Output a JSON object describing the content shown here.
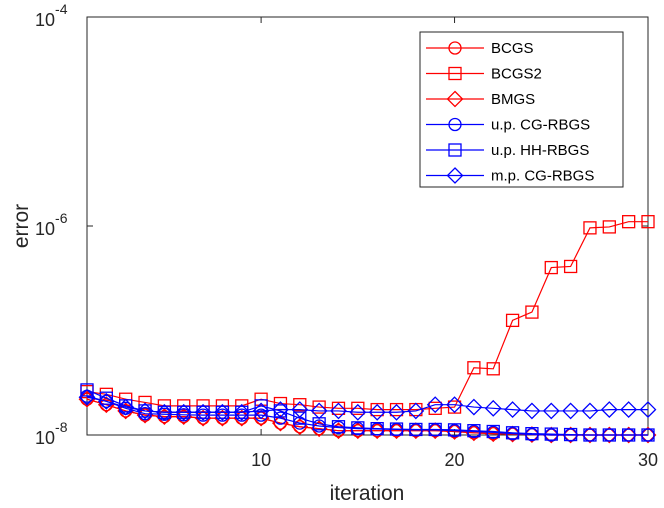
{
  "chart_data": {
    "type": "line",
    "title": "",
    "xlabel": "iteration",
    "ylabel": "error",
    "y_scale": "log",
    "xlim": [
      1,
      30
    ],
    "ylim": [
      1e-08,
      0.0001
    ],
    "x_ticks": [
      10,
      20,
      30
    ],
    "x_tick_labels": [
      "10",
      "20",
      "30"
    ],
    "y_ticks": [
      1e-08,
      1e-06,
      0.0001
    ],
    "y_tick_labels": [
      {
        "base": "10",
        "exp": "-8"
      },
      {
        "base": "10",
        "exp": "-6"
      },
      {
        "base": "10",
        "exp": "-4"
      }
    ],
    "grid": false,
    "legend_position": "top-right",
    "x": [
      1,
      2,
      3,
      4,
      5,
      6,
      7,
      8,
      9,
      10,
      11,
      12,
      13,
      14,
      15,
      16,
      17,
      18,
      19,
      20,
      21,
      22,
      23,
      24,
      25,
      26,
      27,
      28,
      29,
      30
    ],
    "series": [
      {
        "name": "BCGS",
        "color": "#ff0000",
        "marker": "circle",
        "values": [
          2.2e-08,
          1.95e-08,
          1.7e-08,
          1.55e-08,
          1.5e-08,
          1.5e-08,
          1.45e-08,
          1.45e-08,
          1.45e-08,
          1.45e-08,
          1.3e-08,
          1.2e-08,
          1.15e-08,
          1.1e-08,
          1.1e-08,
          1.1e-08,
          1.1e-08,
          1.1e-08,
          1.1e-08,
          1.08e-08,
          1.05e-08,
          1.03e-08,
          1.02e-08,
          1.01e-08,
          1e-08,
          1e-08,
          1e-08,
          1e-08,
          1e-08,
          1e-08
        ]
      },
      {
        "name": "BCGS2",
        "color": "#ff0000",
        "marker": "square",
        "values": [
          2.6e-08,
          2.45e-08,
          2.2e-08,
          2.05e-08,
          1.9e-08,
          1.9e-08,
          1.9e-08,
          1.9e-08,
          1.9e-08,
          2.2e-08,
          2e-08,
          1.95e-08,
          1.85e-08,
          1.8e-08,
          1.8e-08,
          1.75e-08,
          1.75e-08,
          1.75e-08,
          1.8e-08,
          1.85e-08,
          4.4e-08,
          4.3e-08,
          1.25e-07,
          1.5e-07,
          4e-07,
          4.1e-07,
          9.6e-07,
          9.8e-07,
          1.1e-06,
          1.1e-06
        ]
      },
      {
        "name": "BMGS",
        "color": "#ff0000",
        "marker": "diamond",
        "values": [
          2.2e-08,
          1.95e-08,
          1.7e-08,
          1.55e-08,
          1.5e-08,
          1.5e-08,
          1.45e-08,
          1.45e-08,
          1.45e-08,
          1.45e-08,
          1.3e-08,
          1.2e-08,
          1.15e-08,
          1.1e-08,
          1.1e-08,
          1.1e-08,
          1.1e-08,
          1.1e-08,
          1.1e-08,
          1.08e-08,
          1.05e-08,
          1.03e-08,
          1.02e-08,
          1.01e-08,
          1e-08,
          1e-08,
          1e-08,
          1e-08,
          1e-08,
          1e-08
        ]
      },
      {
        "name": "u.p. CG-RBGS",
        "color": "#0000ff",
        "marker": "circle",
        "values": [
          2.35e-08,
          2.1e-08,
          1.8e-08,
          1.6e-08,
          1.58e-08,
          1.56e-08,
          1.55e-08,
          1.55e-08,
          1.55e-08,
          1.55e-08,
          1.45e-08,
          1.3e-08,
          1.22e-08,
          1.18e-08,
          1.15e-08,
          1.14e-08,
          1.13e-08,
          1.12e-08,
          1.12e-08,
          1.1e-08,
          1.08e-08,
          1.06e-08,
          1.03e-08,
          1.01e-08,
          1e-08,
          1e-08,
          1e-08,
          1e-08,
          1e-08,
          1e-08
        ]
      },
      {
        "name": "u.p. HH-RBGS",
        "color": "#0000ff",
        "marker": "square",
        "values": [
          2.7e-08,
          2.25e-08,
          1.9e-08,
          1.7e-08,
          1.65e-08,
          1.65e-08,
          1.65e-08,
          1.65e-08,
          1.65e-08,
          1.9e-08,
          1.7e-08,
          1.45e-08,
          1.28e-08,
          1.2e-08,
          1.17e-08,
          1.15e-08,
          1.14e-08,
          1.13e-08,
          1.13e-08,
          1.12e-08,
          1.1e-08,
          1.08e-08,
          1.05e-08,
          1.03e-08,
          1.02e-08,
          1.01e-08,
          1e-08,
          1e-08,
          1e-08,
          1e-08
        ]
      },
      {
        "name": "m.p. CG-RBGS",
        "color": "#0000ff",
        "marker": "diamond",
        "values": [
          2.3e-08,
          2.1e-08,
          1.85e-08,
          1.7e-08,
          1.65e-08,
          1.65e-08,
          1.65e-08,
          1.65e-08,
          1.65e-08,
          1.7e-08,
          1.75e-08,
          1.75e-08,
          1.7e-08,
          1.7e-08,
          1.65e-08,
          1.65e-08,
          1.65e-08,
          1.7e-08,
          1.95e-08,
          1.95e-08,
          1.85e-08,
          1.8e-08,
          1.75e-08,
          1.7e-08,
          1.7e-08,
          1.7e-08,
          1.7e-08,
          1.75e-08,
          1.75e-08,
          1.75e-08
        ]
      }
    ]
  }
}
